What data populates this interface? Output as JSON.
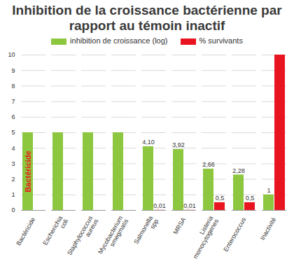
{
  "chart_data": {
    "type": "bar",
    "title": "Inhibition de la croissance bactérienne par rapport au témoin inactif",
    "categories": [
      "Bactéricide",
      "Escherichia coli",
      "Staphylococcus aureus",
      "Mycobacterium smegmatis",
      "Salmonella spp",
      "MRSA",
      "Listeria monocytogenes",
      "Enterococcus",
      "Inactivité"
    ],
    "series": [
      {
        "name": "inhibition de croissance (log)",
        "color": "#8dc63f",
        "values": [
          5,
          5,
          5,
          5,
          4.1,
          3.92,
          2.66,
          2.28,
          1
        ],
        "value_labels": [
          null,
          null,
          null,
          null,
          "4,10",
          "3,92",
          "2,66",
          "2,28",
          "1"
        ]
      },
      {
        "name": "% survivants",
        "color": "#e8141f",
        "values": [
          null,
          null,
          null,
          null,
          0.01,
          0.01,
          0.5,
          0.5,
          10
        ],
        "value_labels": [
          null,
          null,
          null,
          null,
          "0,01",
          "0,01",
          "0,5",
          "0,5",
          null
        ]
      }
    ],
    "annotations": [
      "Bactéricide"
    ],
    "ylim": [
      0,
      10
    ],
    "yticks": [
      0,
      1,
      2,
      3,
      4,
      5,
      6,
      7,
      8,
      9,
      10
    ],
    "grid": true,
    "legend": "top",
    "data_labels": true
  }
}
